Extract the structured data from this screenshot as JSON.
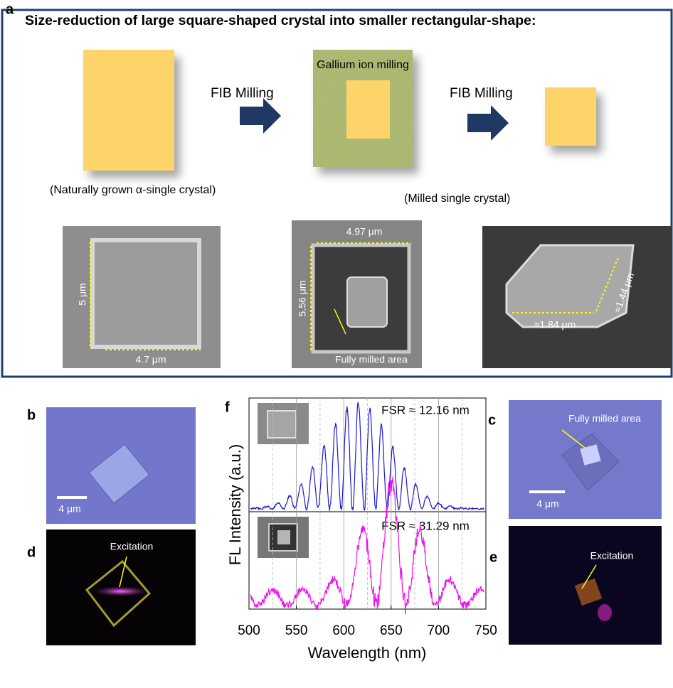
{
  "panel_a": {
    "label": "a",
    "title": "Size-reduction of large square-shaped crystal into smaller rectangular-shape:",
    "arrow_labels": [
      "FIB Milling",
      "FIB Milling"
    ],
    "milling_label": "Gallium ion milling",
    "captions": [
      "(Naturally grown α-single crystal)",
      "(Milled single crystal)"
    ],
    "sem_labels": [
      [
        "5 μm",
        "4.7 μm"
      ],
      [
        "4.97 μm",
        "5.56 μm",
        "Fully milled area"
      ],
      [
        "≈1.84 μm",
        "≈1.44 μm"
      ]
    ]
  },
  "panel_b": {
    "label": "b",
    "scale": "4 μm"
  },
  "panel_c": {
    "label": "c",
    "scale": "4 μm",
    "note": "Fully milled area"
  },
  "panel_d": {
    "label": "d",
    "note": "Excitation"
  },
  "panel_e": {
    "label": "e",
    "note": "Excitation"
  },
  "panel_f": {
    "label": "f",
    "x_label": "Wavelength (nm)",
    "y_label": "FL Intensity  (a.u.)",
    "xlim": [
      500,
      750
    ],
    "xticks": [
      500,
      550,
      600,
      650,
      700,
      750
    ],
    "annotations": [
      "FSR ≈ 12.16 nm",
      "FSR ≈ 31.29 nm"
    ]
  }
}
